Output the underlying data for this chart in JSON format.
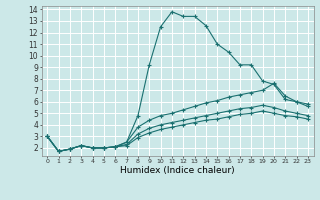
{
  "title": "",
  "xlabel": "Humidex (Indice chaleur)",
  "background_color": "#cce8e8",
  "grid_color": "#ffffff",
  "line_color": "#1a7070",
  "xlim": [
    -0.5,
    23.5
  ],
  "ylim": [
    1.3,
    14.3
  ],
  "xticks": [
    0,
    1,
    2,
    3,
    4,
    5,
    6,
    7,
    8,
    9,
    10,
    11,
    12,
    13,
    14,
    15,
    16,
    17,
    18,
    19,
    20,
    21,
    22,
    23
  ],
  "yticks": [
    2,
    3,
    4,
    5,
    6,
    7,
    8,
    9,
    10,
    11,
    12,
    13,
    14
  ],
  "series": [
    {
      "x": [
        0,
        1,
        2,
        3,
        4,
        5,
        6,
        7,
        8,
        9,
        10,
        11,
        12,
        13,
        14,
        15,
        16,
        17,
        18,
        19,
        20,
        21,
        22,
        23
      ],
      "y": [
        3.0,
        1.7,
        1.9,
        2.2,
        2.0,
        2.0,
        2.1,
        2.5,
        4.8,
        9.2,
        12.5,
        13.8,
        13.4,
        13.4,
        12.6,
        11.0,
        10.3,
        9.2,
        9.2,
        7.8,
        7.5,
        6.2,
        6.0,
        5.8
      ]
    },
    {
      "x": [
        0,
        1,
        2,
        3,
        4,
        5,
        6,
        7,
        8,
        9,
        10,
        11,
        12,
        13,
        14,
        15,
        16,
        17,
        18,
        19,
        20,
        21,
        22,
        23
      ],
      "y": [
        3.0,
        1.7,
        1.9,
        2.2,
        2.0,
        2.0,
        2.1,
        2.5,
        3.8,
        4.4,
        4.8,
        5.0,
        5.3,
        5.6,
        5.9,
        6.1,
        6.4,
        6.6,
        6.8,
        7.0,
        7.6,
        6.5,
        6.0,
        5.6
      ]
    },
    {
      "x": [
        0,
        1,
        2,
        3,
        4,
        5,
        6,
        7,
        8,
        9,
        10,
        11,
        12,
        13,
        14,
        15,
        16,
        17,
        18,
        19,
        20,
        21,
        22,
        23
      ],
      "y": [
        3.0,
        1.7,
        1.9,
        2.2,
        2.0,
        2.0,
        2.1,
        2.3,
        3.2,
        3.7,
        4.0,
        4.2,
        4.4,
        4.6,
        4.8,
        5.0,
        5.2,
        5.4,
        5.5,
        5.7,
        5.5,
        5.2,
        5.0,
        4.8
      ]
    },
    {
      "x": [
        0,
        1,
        2,
        3,
        4,
        5,
        6,
        7,
        8,
        9,
        10,
        11,
        12,
        13,
        14,
        15,
        16,
        17,
        18,
        19,
        20,
        21,
        22,
        23
      ],
      "y": [
        3.0,
        1.7,
        1.9,
        2.2,
        2.0,
        2.0,
        2.1,
        2.2,
        2.9,
        3.3,
        3.6,
        3.8,
        4.0,
        4.2,
        4.4,
        4.5,
        4.7,
        4.9,
        5.0,
        5.2,
        5.0,
        4.8,
        4.7,
        4.5
      ]
    }
  ]
}
